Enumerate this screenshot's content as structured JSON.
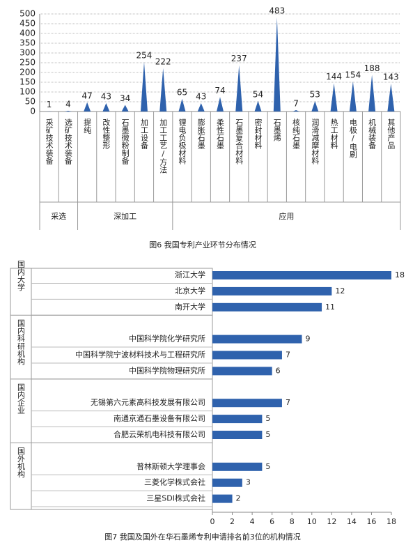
{
  "chart_data": [
    {
      "type": "spike",
      "caption": "图6 我国专利产业环节分布情况",
      "ylim": [
        0,
        500
      ],
      "yticks": [
        0,
        50,
        100,
        150,
        200,
        250,
        300,
        350,
        400,
        450,
        500
      ],
      "color": "#2f62ad",
      "groups": [
        {
          "name": "采选",
          "categories": [
            "采矿技术装备",
            "选矿技术装备"
          ],
          "values": [
            1,
            4
          ]
        },
        {
          "name": "深加工",
          "categories": [
            "提纯",
            "改性整形",
            "石墨微粉制备",
            "加工设备",
            "加工工艺/方法"
          ],
          "values": [
            47,
            43,
            34,
            254,
            222
          ]
        },
        {
          "name": "应用",
          "categories": [
            "锂电负极材料",
            "膨胀石墨",
            "柔性石墨",
            "石墨复合材料",
            "密封材料",
            "石墨烯",
            "核纯石墨",
            "润滑减摩材料",
            "热工材料",
            "电极/电刷",
            "机械装备",
            "其他产品"
          ],
          "values": [
            65,
            43,
            74,
            237,
            54,
            483,
            7,
            53,
            144,
            154,
            188,
            143
          ]
        }
      ]
    },
    {
      "type": "hbar",
      "caption": "图7 我国及国外在华石墨烯专利申请排名前3位的机构情况",
      "xlim": [
        0,
        18
      ],
      "xticks": [
        0,
        2,
        4,
        6,
        8,
        10,
        12,
        14,
        16,
        18
      ],
      "color": "#2f62ad",
      "groups": [
        {
          "name": "国内大学",
          "categories": [
            "浙江大学",
            "北京大学",
            "南开大学"
          ],
          "values": [
            18,
            12,
            11
          ]
        },
        {
          "name": "国内科研机构",
          "categories": [
            "中国科学院化学研究所",
            "中国科学院宁波材料技术与工程研究所",
            "中国科学院物理研究所"
          ],
          "values": [
            9,
            7,
            6
          ]
        },
        {
          "name": "国内企业",
          "categories": [
            "无锡第六元素高科技发展有限公司",
            "南通京通石墨设备有限公司",
            "合肥云荣机电科技有限公司"
          ],
          "values": [
            7,
            5,
            5
          ]
        },
        {
          "name": "国外机构",
          "categories": [
            "普林斯顿大学理事会",
            "三菱化学株式会社",
            "三星SDI株式会社"
          ],
          "values": [
            5,
            3,
            2
          ]
        }
      ]
    }
  ]
}
